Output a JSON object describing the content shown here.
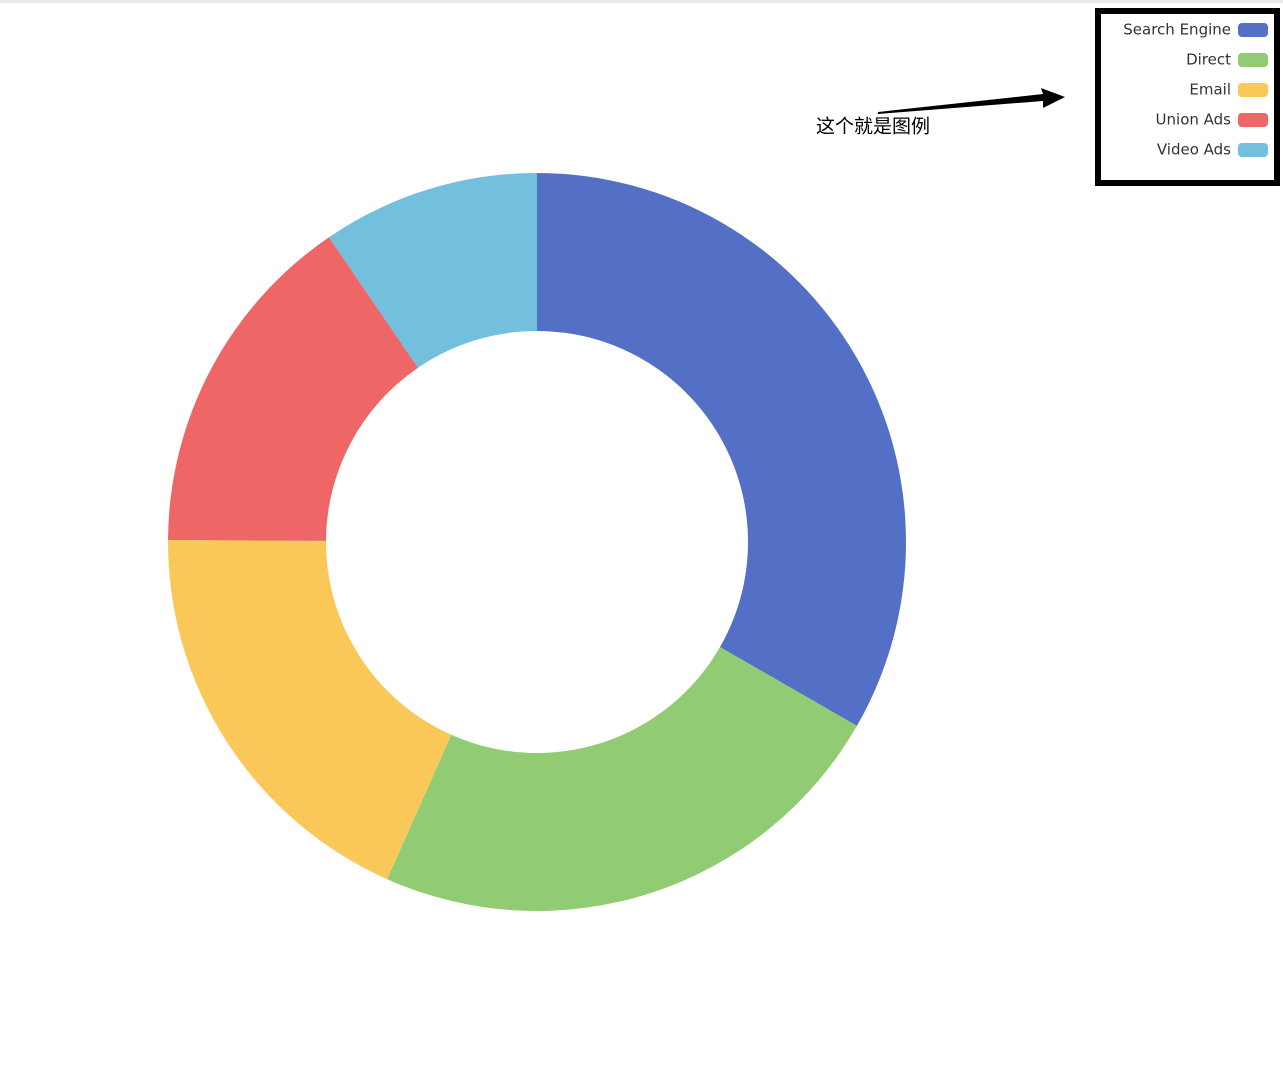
{
  "chart_data": {
    "type": "pie",
    "categories": [
      "Search Engine",
      "Direct",
      "Email",
      "Union Ads",
      "Video Ads"
    ],
    "values": [
      1048,
      735,
      580,
      484,
      300
    ],
    "colors": [
      "#5470c6",
      "#91cc75",
      "#fac858",
      "#ee6666",
      "#73c0de"
    ],
    "donut": true,
    "legend": "top-right",
    "annotation": "这个就是图例"
  }
}
